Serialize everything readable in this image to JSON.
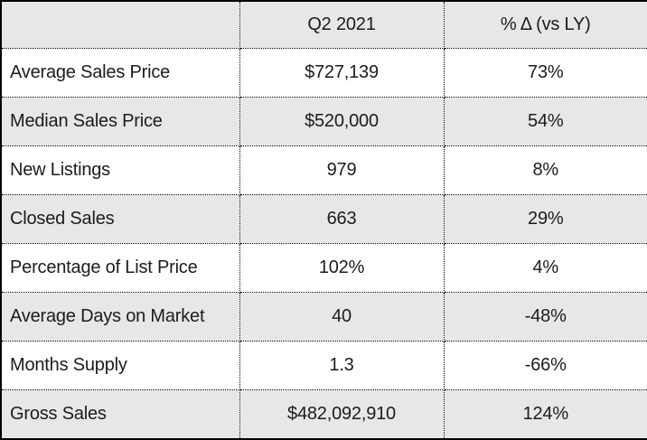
{
  "chart_data": {
    "type": "table",
    "title": "",
    "columns": [
      "",
      "Q2 2021",
      "% Δ (vs LY)"
    ],
    "rows": [
      [
        "Average Sales Price",
        "$727,139",
        "73%"
      ],
      [
        "Median Sales Price",
        "$520,000",
        "54%"
      ],
      [
        "New Listings",
        "979",
        "8%"
      ],
      [
        "Closed Sales",
        "663",
        "29%"
      ],
      [
        "Percentage of List Price",
        "102%",
        "4%"
      ],
      [
        "Average Days on Market",
        "40",
        "-48%"
      ],
      [
        "Months Supply",
        "1.3",
        "-66%"
      ],
      [
        "Gross Sales",
        "$482,092,910",
        "124%"
      ]
    ],
    "layout": {
      "header_background": "#e7e7e7",
      "stripe_background": "#e7e7e7",
      "row_background": "#ffffff",
      "outer_border": "#000000",
      "inner_border_style": "dotted",
      "text_color": "#1c1c1c"
    }
  }
}
